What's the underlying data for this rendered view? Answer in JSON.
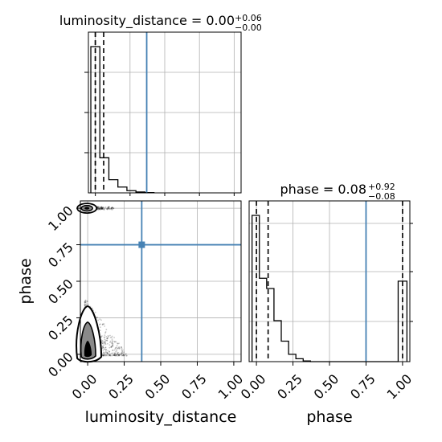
{
  "chart_data": {
    "type": "corner",
    "truth_color": "#4682b4",
    "grid": true,
    "parameters": [
      {
        "name": "luminosity_distance",
        "xlabel": "luminosity_distance",
        "title_main": "luminosity_distance = 0.00",
        "title_plus": "+0.06",
        "title_minus": "−0.00",
        "range": [
          -0.05,
          1.05
        ],
        "ticks": [
          "0.00",
          "0.25",
          "0.50",
          "0.75",
          "1.00"
        ],
        "tick_values": [
          0,
          0.25,
          0.5,
          0.75,
          1.0
        ],
        "quantiles": [
          0.0,
          0.0,
          0.06
        ],
        "truth": 0.37,
        "hist_edges": [
          -0.0325,
          0.0325,
          0.0975,
          0.1625,
          0.2275,
          0.2925,
          0.3575,
          0.4225
        ],
        "hist_values": [
          1.0,
          0.24,
          0.09,
          0.04,
          0.015,
          0.006,
          0.002
        ]
      },
      {
        "name": "phase",
        "xlabel": "phase",
        "ylabel": "phase",
        "title_main": "phase = 0.08",
        "title_plus": "+0.92",
        "title_minus": "−0.08",
        "range": [
          -0.05,
          1.05
        ],
        "ticks": [
          "0.00",
          "0.25",
          "0.50",
          "0.75",
          "1.00"
        ],
        "tick_values": [
          0,
          0.25,
          0.5,
          0.75,
          1.0
        ],
        "quantiles": [
          0.0,
          0.08,
          1.0
        ],
        "truth": 0.75,
        "hist_edges": [
          -0.03,
          0.02,
          0.07,
          0.12,
          0.17,
          0.22,
          0.27,
          0.32,
          0.37,
          0.42,
          0.97,
          1.03
        ],
        "hist_values": [
          1.0,
          0.57,
          0.5,
          0.28,
          0.14,
          0.05,
          0.02,
          0.005,
          0.0,
          0.0,
          0.55
        ]
      }
    ],
    "scatter": {
      "x_param": "luminosity_distance",
      "y_param": "phase",
      "truth": [
        0.37,
        0.75
      ],
      "clusters": [
        {
          "x_center": 0.0,
          "y_center": 1.0,
          "x_spread": 0.2,
          "y_spread": 0.015
        },
        {
          "x_center": 0.0,
          "y_center": 0.08,
          "x_spread": 0.25,
          "y_spread": 0.3
        }
      ]
    }
  }
}
